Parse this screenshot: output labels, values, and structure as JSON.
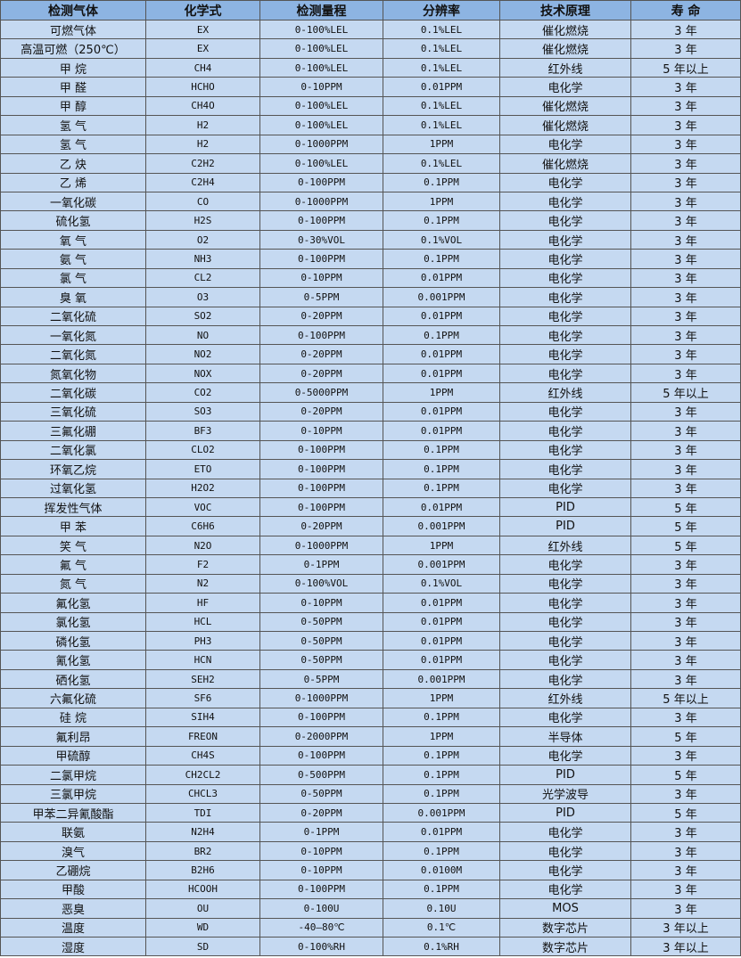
{
  "colors": {
    "header_bg": "#8db4e2",
    "row_bg": "#c5d9f1",
    "border": "#555555"
  },
  "headers": [
    "检测气体",
    "化学式",
    "检测量程",
    "分辨率",
    "技术原理",
    "寿 命"
  ],
  "rows": [
    [
      "可燃气体",
      "EX",
      "0-100%LEL",
      "0.1%LEL",
      "催化燃烧",
      "3 年"
    ],
    [
      "高温可燃（250℃）",
      "EX",
      "0-100%LEL",
      "0.1%LEL",
      "催化燃烧",
      "3 年"
    ],
    [
      "甲 烷",
      "CH4",
      "0-100%LEL",
      "0.1%LEL",
      "红外线",
      "5 年以上"
    ],
    [
      "甲 醛",
      "HCHO",
      "0-10PPM",
      "0.01PPM",
      "电化学",
      "3 年"
    ],
    [
      "甲 醇",
      "CH4O",
      "0-100%LEL",
      "0.1%LEL",
      "催化燃烧",
      "3 年"
    ],
    [
      "氢 气",
      "H2",
      "0-100%LEL",
      "0.1%LEL",
      "催化燃烧",
      "3 年"
    ],
    [
      "氢 气",
      "H2",
      "0-1000PPM",
      "1PPM",
      "电化学",
      "3 年"
    ],
    [
      "乙 炔",
      "C2H2",
      "0-100%LEL",
      "0.1%LEL",
      "催化燃烧",
      "3 年"
    ],
    [
      "乙 烯",
      "C2H4",
      "0-100PPM",
      "0.1PPM",
      "电化学",
      "3 年"
    ],
    [
      "一氧化碳",
      "CO",
      "0-1000PPM",
      "1PPM",
      "电化学",
      "3 年"
    ],
    [
      "硫化氢",
      "H2S",
      "0-100PPM",
      "0.1PPM",
      "电化学",
      "3 年"
    ],
    [
      "氧 气",
      "O2",
      "0-30%VOL",
      "0.1%VOL",
      "电化学",
      "3 年"
    ],
    [
      "氨 气",
      "NH3",
      "0-100PPM",
      "0.1PPM",
      "电化学",
      "3 年"
    ],
    [
      "氯 气",
      "CL2",
      "0-10PPM",
      "0.01PPM",
      "电化学",
      "3 年"
    ],
    [
      "臭 氧",
      "O3",
      "0-5PPM",
      "0.001PPM",
      "电化学",
      "3 年"
    ],
    [
      "二氧化硫",
      "SO2",
      "0-20PPM",
      "0.01PPM",
      "电化学",
      "3 年"
    ],
    [
      "一氧化氮",
      "NO",
      "0-100PPM",
      "0.1PPM",
      "电化学",
      "3 年"
    ],
    [
      "二氧化氮",
      "NO2",
      "0-20PPM",
      "0.01PPM",
      "电化学",
      "3 年"
    ],
    [
      "氮氧化物",
      "NOX",
      "0-20PPM",
      "0.01PPM",
      "电化学",
      "3 年"
    ],
    [
      "二氧化碳",
      "CO2",
      "0-5000PPM",
      "1PPM",
      "红外线",
      "5 年以上"
    ],
    [
      "三氧化硫",
      "SO3",
      "0-20PPM",
      "0.01PPM",
      "电化学",
      "3 年"
    ],
    [
      "三氟化硼",
      "BF3",
      "0-10PPM",
      "0.01PPM",
      "电化学",
      "3 年"
    ],
    [
      "二氧化氯",
      "CLO2",
      "0-100PPM",
      "0.1PPM",
      "电化学",
      "3 年"
    ],
    [
      "环氧乙烷",
      "ETO",
      "0-100PPM",
      "0.1PPM",
      "电化学",
      "3 年"
    ],
    [
      "过氧化氢",
      "H2O2",
      "0-100PPM",
      "0.1PPM",
      "电化学",
      "3 年"
    ],
    [
      "挥发性气体",
      "VOC",
      "0-100PPM",
      "0.01PPM",
      "PID",
      "5 年"
    ],
    [
      "甲 苯",
      "C6H6",
      "0-20PPM",
      "0.001PPM",
      "PID",
      "5 年"
    ],
    [
      "笑 气",
      "N2O",
      "0-1000PPM",
      "1PPM",
      "红外线",
      "5 年"
    ],
    [
      "氟 气",
      "F2",
      "0-1PPM",
      "0.001PPM",
      "电化学",
      "3 年"
    ],
    [
      "氮 气",
      "N2",
      "0-100%VOL",
      "0.1%VOL",
      "电化学",
      "3 年"
    ],
    [
      "氟化氢",
      "HF",
      "0-10PPM",
      "0.01PPM",
      "电化学",
      "3 年"
    ],
    [
      "氯化氢",
      "HCL",
      "0-50PPM",
      "0.01PPM",
      "电化学",
      "3 年"
    ],
    [
      "磷化氢",
      "PH3",
      "0-50PPM",
      "0.01PPM",
      "电化学",
      "3 年"
    ],
    [
      "氰化氢",
      "HCN",
      "0-50PPM",
      "0.01PPM",
      "电化学",
      "3 年"
    ],
    [
      "硒化氢",
      "SEH2",
      "0-5PPM",
      "0.001PPM",
      "电化学",
      "3 年"
    ],
    [
      "六氟化硫",
      "SF6",
      "0-1000PPM",
      "1PPM",
      "红外线",
      "5 年以上"
    ],
    [
      "硅 烷",
      "SIH4",
      "0-100PPM",
      "0.1PPM",
      "电化学",
      "3 年"
    ],
    [
      "氟利昂",
      "FREON",
      "0-2000PPM",
      "1PPM",
      "半导体",
      "5 年"
    ],
    [
      "甲硫醇",
      "CH4S",
      "0-100PPM",
      "0.1PPM",
      "电化学",
      "3 年"
    ],
    [
      "二氯甲烷",
      "CH2CL2",
      "0-500PPM",
      "0.1PPM",
      "PID",
      "5 年"
    ],
    [
      "三氯甲烷",
      "CHCL3",
      "0-50PPM",
      "0.1PPM",
      "光学波导",
      "3 年"
    ],
    [
      "甲苯二异氰酸酯",
      "TDI",
      "0-20PPM",
      "0.001PPM",
      "PID",
      "5 年"
    ],
    [
      "联氨",
      "N2H4",
      "0-1PPM",
      "0.01PPM",
      "电化学",
      "3 年"
    ],
    [
      "溴气",
      "BR2",
      "0-10PPM",
      "0.1PPM",
      "电化学",
      "3 年"
    ],
    [
      "乙硼烷",
      "B2H6",
      "0-10PPM",
      "0.0100M",
      "电化学",
      "3 年"
    ],
    [
      "甲酸",
      "HCOOH",
      "0-100PPM",
      "0.1PPM",
      "电化学",
      "3 年"
    ],
    [
      "恶臭",
      "OU",
      "0-100U",
      "0.10U",
      "MOS",
      "3 年"
    ],
    [
      "温度",
      "WD",
      "-40—80℃",
      "0.1℃",
      "数字芯片",
      "3 年以上"
    ],
    [
      "湿度",
      "SD",
      "0-100%RH",
      "0.1%RH",
      "数字芯片",
      "3 年以上"
    ]
  ]
}
